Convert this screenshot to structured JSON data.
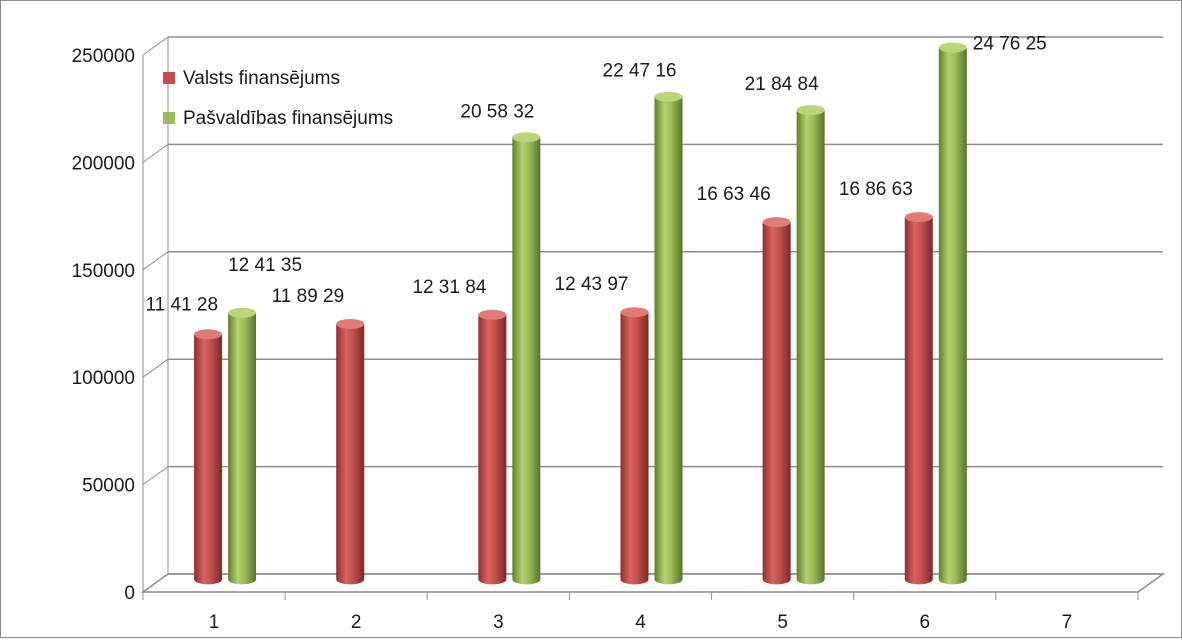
{
  "chart_data": {
    "type": "bar",
    "title": "",
    "xlabel": "",
    "ylabel": "",
    "categories": [
      "1",
      "2",
      "3",
      "4",
      "5",
      "6",
      "7"
    ],
    "ylim": [
      0,
      250000
    ],
    "y_ticks": [
      0,
      50000,
      100000,
      150000,
      200000,
      250000
    ],
    "y_tick_labels": [
      "0",
      "50000",
      "100000",
      "150000",
      "200000",
      "250000"
    ],
    "grid": true,
    "style": "3d-cylinder",
    "legend": {
      "placement": "top-left"
    },
    "series": [
      {
        "name": "Valsts finansējums",
        "color": "#c0504d",
        "values": [
          114128,
          118929,
          123184,
          124397,
          166346,
          168663,
          null
        ],
        "labels": [
          "11 41 28",
          "11 89 29",
          "12 31 84",
          "12 43 97",
          "16 63 46",
          "16 86 63",
          null
        ]
      },
      {
        "name": "Pašvaldības finansējums",
        "color": "#9bbb59",
        "values": [
          124135,
          null,
          205832,
          224716,
          218484,
          247625,
          null
        ],
        "labels": [
          "12 41 35",
          null,
          "20 58 32",
          "22 47 16",
          "21 84 84",
          "24 76 25",
          null
        ]
      }
    ]
  }
}
